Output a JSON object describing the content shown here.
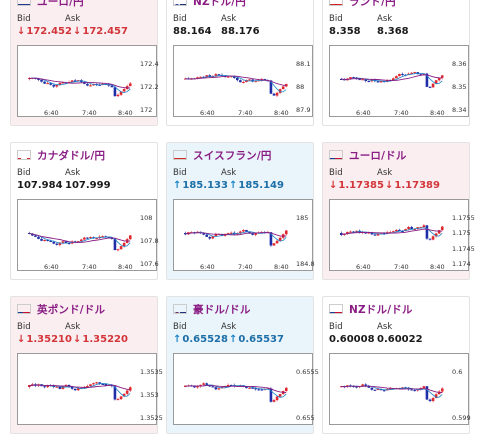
{
  "common": {
    "bid_label": "Bid",
    "ask_label": "Ask"
  },
  "cards": [
    {
      "pair": "ユーロ/円",
      "flag": "eu",
      "bg": "pink",
      "dir": "down",
      "bid": "172.452",
      "ask": "172.457",
      "y_ticks": [
        "172.4",
        "172.2",
        "172"
      ],
      "x_ticks": [
        "6:40",
        "7:40",
        "8:40"
      ]
    },
    {
      "pair": "NZドル/円",
      "flag": "nz",
      "bg": "white",
      "dir": "none",
      "bid": "88.164",
      "ask": "88.176",
      "y_ticks": [
        "88.1",
        "88",
        "87.9"
      ],
      "x_ticks": [
        "6:40",
        "7:40",
        "8:40"
      ]
    },
    {
      "pair": "ランド/円",
      "flag": "za",
      "bg": "white",
      "dir": "none",
      "bid": "8.358",
      "ask": "8.368",
      "y_ticks": [
        "8.36",
        "8.35",
        "8.34"
      ],
      "x_ticks": [
        "6:40",
        "7:40",
        "8:40"
      ]
    },
    {
      "pair": "カナダドル/円",
      "flag": "ca",
      "bg": "white",
      "dir": "none",
      "bid": "107.984",
      "ask": "107.999",
      "y_ticks": [
        "108",
        "107.8",
        "107.6"
      ],
      "x_ticks": [
        "6:40",
        "7:40",
        "8:40"
      ]
    },
    {
      "pair": "スイスフラン/円",
      "flag": "ch",
      "bg": "blue",
      "dir": "up",
      "bid": "185.133",
      "ask": "185.149",
      "y_ticks": [
        "185",
        "184.8"
      ],
      "x_ticks": [
        "6:40",
        "7:40",
        "8:40"
      ]
    },
    {
      "pair": "ユーロ/ドル",
      "flag": "us",
      "bg": "pink",
      "dir": "down",
      "bid": "1.17385",
      "ask": "1.17389",
      "y_ticks": [
        "1.1755",
        "1.175",
        "1.1745",
        "1.174"
      ],
      "x_ticks": [
        "6:40",
        "7:40",
        "8:40"
      ]
    },
    {
      "pair": "英ポンド/ドル",
      "flag": "us",
      "bg": "pink",
      "dir": "down",
      "bid": "1.35210",
      "ask": "1.35220",
      "y_ticks": [
        "1.3535",
        "1.353",
        "1.3525"
      ],
      "x_ticks": []
    },
    {
      "pair": "豪ドル/ドル",
      "flag": "au",
      "bg": "blue",
      "dir": "up",
      "bid": "0.65528",
      "ask": "0.65537",
      "y_ticks": [
        "0.6555",
        "0.655"
      ],
      "x_ticks": []
    },
    {
      "pair": "NZドル/ドル",
      "flag": "us",
      "bg": "white",
      "dir": "none",
      "bid": "0.60008",
      "ask": "0.60022",
      "y_ticks": [
        "0.6",
        "0.599"
      ],
      "x_ticks": []
    }
  ],
  "colors": {
    "candle_up": "#e0262f",
    "candle_down": "#1f2ea8",
    "ma_short": "#8a1e84",
    "ma_long": "#1c86c8"
  }
}
